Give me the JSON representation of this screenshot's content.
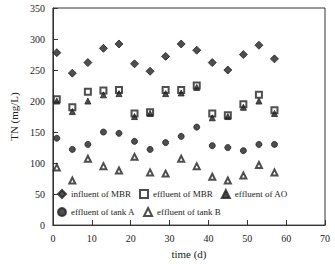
{
  "chart_data": {
    "type": "scatter",
    "x_label": "time (d)",
    "y_label": "TN (mg/L)",
    "xlim": [
      0,
      70
    ],
    "xticks": [
      0,
      10,
      20,
      30,
      40,
      50,
      60,
      70
    ],
    "ylim": [
      0,
      350
    ],
    "yticks": [
      0,
      50,
      100,
      150,
      200,
      250,
      300,
      350
    ],
    "grid": false,
    "legend": "bottom",
    "series": [
      {
        "name": "influent of MBR",
        "color": "#222222",
        "marker": "diamond",
        "x": [
          1,
          5,
          9,
          13,
          17,
          21,
          25,
          29,
          33,
          37,
          41,
          45,
          49,
          53,
          57
        ],
        "values": [
          278,
          245,
          262,
          285,
          292,
          260,
          248,
          272,
          292,
          282,
          262,
          250,
          275,
          290,
          268
        ]
      },
      {
        "name": "effluent of MBR",
        "color": "#222222",
        "marker": "square-open",
        "x": [
          1,
          5,
          9,
          13,
          17,
          21,
          25,
          29,
          33,
          37,
          41,
          45,
          49,
          53,
          57
        ],
        "values": [
          203,
          190,
          215,
          217,
          218,
          180,
          182,
          218,
          218,
          225,
          180,
          177,
          195,
          210,
          185
        ]
      },
      {
        "name": "effluent of AO",
        "color": "#222222",
        "marker": "triangle",
        "x": [
          1,
          5,
          9,
          13,
          17,
          21,
          25,
          29,
          33,
          37,
          41,
          45,
          49,
          53,
          57
        ],
        "values": [
          200,
          183,
          200,
          210,
          212,
          175,
          180,
          212,
          213,
          222,
          173,
          175,
          190,
          200,
          180
        ]
      },
      {
        "name": "effluent of tank A",
        "color": "#222222",
        "marker": "circle",
        "x": [
          1,
          5,
          9,
          13,
          17,
          21,
          25,
          29,
          33,
          37,
          41,
          45,
          49,
          53,
          57
        ],
        "values": [
          140,
          122,
          130,
          150,
          148,
          135,
          122,
          133,
          143,
          158,
          128,
          125,
          120,
          130,
          130
        ]
      },
      {
        "name": "effluent of tank B",
        "color": "#222222",
        "marker": "triangle-open",
        "x": [
          1,
          5,
          9,
          13,
          17,
          21,
          25,
          29,
          33,
          37,
          41,
          45,
          49,
          53,
          57
        ],
        "values": [
          93,
          72,
          107,
          95,
          88,
          110,
          85,
          83,
          107,
          95,
          78,
          72,
          80,
          97,
          85
        ]
      }
    ]
  }
}
